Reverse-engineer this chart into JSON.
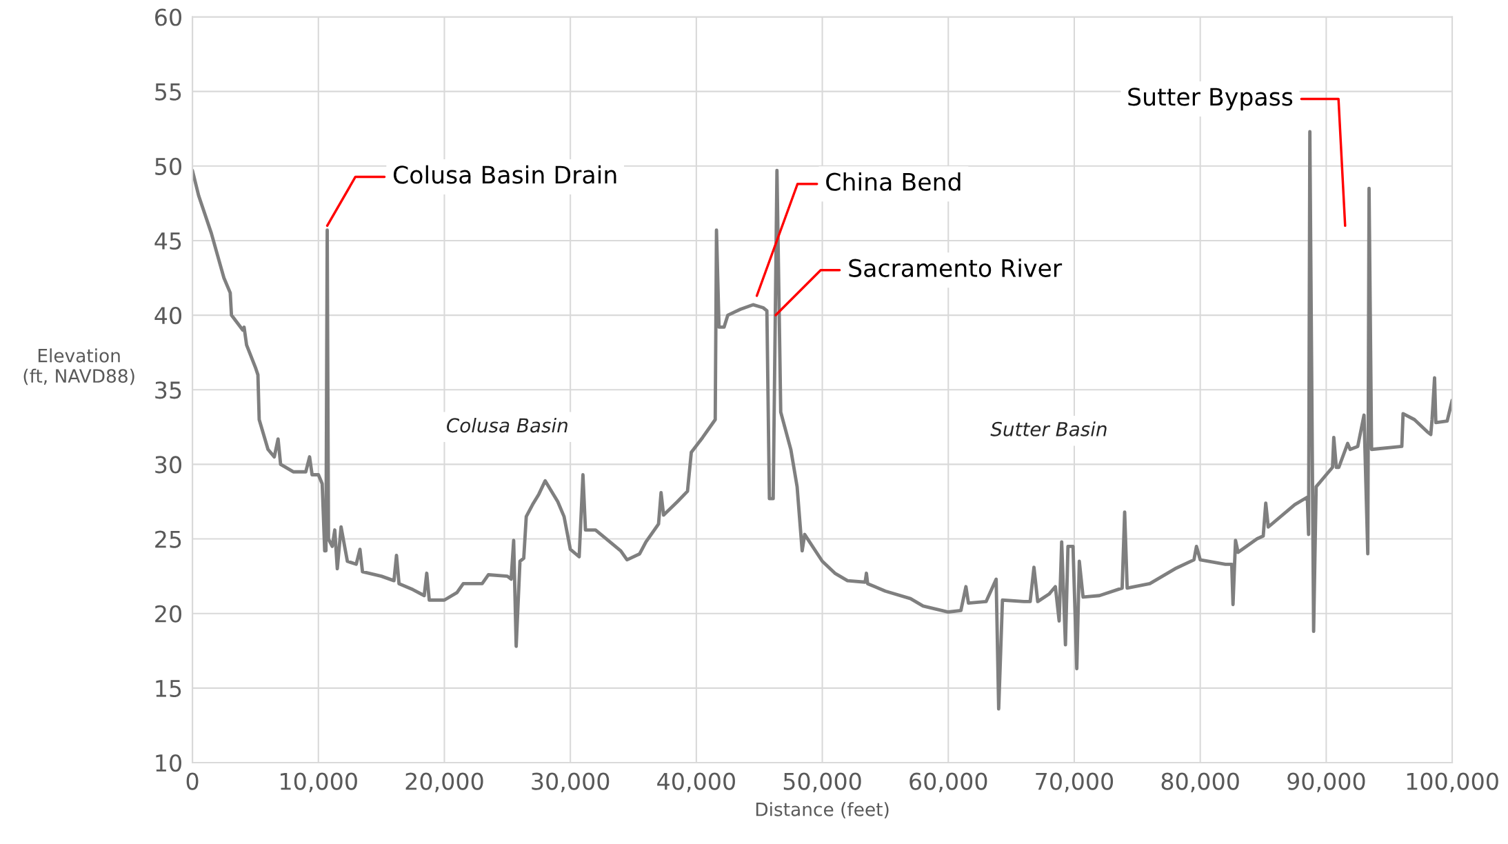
{
  "chart_data": {
    "type": "line",
    "xlabel": "Distance (feet)",
    "ylabel": "Elevation\n(ft, NAVD88)",
    "series": [
      {
        "color": "#7f7f7f",
        "x": [
          0,
          500,
          1500,
          2000,
          2500,
          3000,
          3100,
          4000,
          4100,
          4300,
          5000,
          5200,
          5300,
          6000,
          6500,
          6800,
          7000,
          8000,
          9000,
          9300,
          9500,
          10000,
          10300,
          10500,
          10600,
          10700,
          10800,
          11100,
          11300,
          11500,
          11800,
          12300,
          13000,
          13300,
          13500,
          15000,
          16000,
          16200,
          16400,
          17500,
          18400,
          18600,
          18800,
          20000,
          21000,
          21500,
          23000,
          23500,
          25000,
          25300,
          25500,
          25700,
          26000,
          26300,
          26500,
          27000,
          27500,
          28000,
          29000,
          29500,
          30000,
          30700,
          31000,
          31200,
          32000,
          34000,
          34500,
          35500,
          36000,
          37000,
          37200,
          37400,
          38500,
          39300,
          39600,
          40500,
          41500,
          41600,
          41800,
          42200,
          42500,
          43500,
          44500,
          45300,
          45600,
          45800,
          46100,
          46400,
          46700,
          47500,
          48000,
          48400,
          48600,
          50000,
          51000,
          52000,
          53400,
          53500,
          53600,
          55000,
          57000,
          58000,
          60000,
          61000,
          61400,
          61600,
          63000,
          63800,
          64000,
          64300,
          66000,
          66500,
          66800,
          67100,
          68000,
          68500,
          68800,
          69000,
          69300,
          69500,
          69900,
          70200,
          70400,
          70700,
          72000,
          73800,
          74000,
          74200,
          76000,
          77000,
          78000,
          79500,
          79700,
          80000,
          82000,
          82500,
          82600,
          82800,
          83000,
          84500,
          85000,
          85200,
          85400,
          87500,
          88500,
          88600,
          88700,
          89000,
          89200,
          90000,
          90500,
          90600,
          90800,
          91000,
          91700,
          91900,
          92500,
          93000,
          93300,
          93400,
          93600,
          96000,
          96100,
          97000,
          98000,
          98300,
          98400,
          98600,
          98700,
          99600,
          100000
        ],
        "values": [
          49.7,
          48,
          45.5,
          44,
          42.5,
          41.5,
          40,
          39,
          39.2,
          38,
          36.5,
          36,
          33,
          31,
          30.5,
          31.7,
          30,
          29.5,
          29.5,
          30.5,
          29.3,
          29.3,
          28.7,
          24.2,
          24.2,
          45.7,
          25,
          24.5,
          25.6,
          23,
          25.8,
          23.5,
          23.3,
          24.3,
          22.8,
          22.5,
          22.2,
          23.9,
          22,
          21.6,
          21.2,
          22.7,
          20.9,
          20.9,
          21.4,
          22,
          22,
          22.6,
          22.5,
          22.3,
          24.9,
          17.8,
          23.5,
          23.7,
          26.5,
          27.3,
          28,
          28.9,
          27.5,
          26.5,
          24.3,
          23.8,
          29.3,
          25.6,
          25.6,
          24.2,
          23.6,
          24,
          24.8,
          26,
          28.1,
          26.6,
          27.5,
          28.2,
          30.8,
          31.8,
          33,
          45.7,
          39.2,
          39.2,
          40,
          40.4,
          40.7,
          40.5,
          40.3,
          27.7,
          27.7,
          49.7,
          33.5,
          31,
          28.5,
          24.2,
          25.3,
          23.5,
          22.7,
          22.2,
          22.1,
          22.7,
          22,
          21.5,
          21,
          20.5,
          20.1,
          20.2,
          21.8,
          20.7,
          20.8,
          22.3,
          13.6,
          20.9,
          20.8,
          20.8,
          23.1,
          20.8,
          21.3,
          21.8,
          19.5,
          24.8,
          17.9,
          24.5,
          24.5,
          16.3,
          23.5,
          21.1,
          21.2,
          21.7,
          26.8,
          21.7,
          22,
          22.5,
          23,
          23.6,
          24.5,
          23.6,
          23.3,
          23.3,
          20.6,
          24.9,
          24.1,
          25,
          25.2,
          27.4,
          25.8,
          27.3,
          27.8,
          25.3,
          52.3,
          18.8,
          28.5,
          29.3,
          29.8,
          31.8,
          29.8,
          29.8,
          31.4,
          31,
          31.2,
          33.3,
          24,
          48.5,
          31,
          31.2,
          33.4,
          33,
          32.2,
          32,
          33,
          35.8,
          32.8,
          32.9,
          34.3
        ]
      }
    ],
    "xlim": [
      0,
      100000
    ],
    "ylim": [
      10,
      60
    ],
    "xticks": [
      0,
      {
        "value": 10000,
        "label": "10,000"
      },
      {
        "value": 20000,
        "label": "20,000"
      },
      {
        "value": 30000,
        "label": "30,000"
      },
      {
        "value": 40000,
        "label": "40,000"
      },
      {
        "value": 50000,
        "label": "50,000"
      },
      {
        "value": 60000,
        "label": "60,000"
      },
      {
        "value": 70000,
        "label": "70,000"
      },
      {
        "value": 80000,
        "label": "80,000"
      },
      {
        "value": 90000,
        "label": "90,000"
      },
      {
        "value": 100000,
        "label": "100,000"
      }
    ],
    "yticks": [
      10,
      15,
      20,
      25,
      30,
      35,
      40,
      45,
      50,
      55,
      60
    ],
    "grid": true,
    "legend": false,
    "marker": "none",
    "line_style": "solid",
    "annotations": [
      {
        "text": "Colusa Basin Drain",
        "x": 10700,
        "y": 46
      },
      "China Bend",
      {
        "text": "Sacramento River",
        "x": 46300,
        "y": 40
      },
      "Sutter Bypass",
      "Colusa Basin",
      "Sutter Basin"
    ]
  }
}
